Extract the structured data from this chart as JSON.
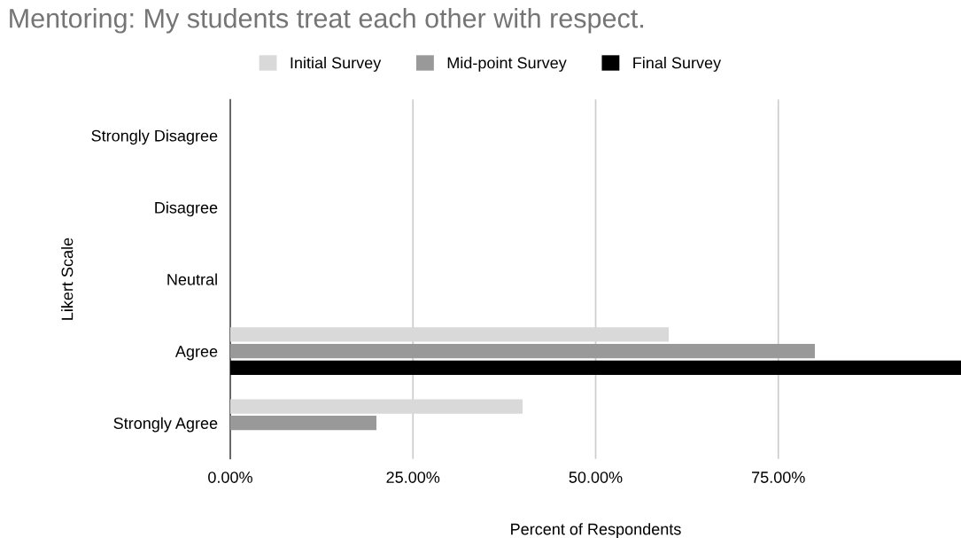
{
  "chart_data": {
    "type": "bar",
    "orientation": "horizontal",
    "title": "Mentoring: My students treat each other with respect.",
    "xlabel": "Percent of Respondents",
    "ylabel": "Likert Scale",
    "categories": [
      "Strongly Disagree",
      "Disagree",
      "Neutral",
      "Agree",
      "Strongly Agree"
    ],
    "series": [
      {
        "name": "Initial Survey",
        "color": "#d9d9d9",
        "values": [
          0,
          0,
          0,
          60,
          40
        ]
      },
      {
        "name": "Mid-point Survey",
        "color": "#999999",
        "values": [
          0,
          0,
          0,
          80,
          20
        ]
      },
      {
        "name": "Final Survey",
        "color": "#000000",
        "values": [
          0,
          0,
          0,
          100,
          0
        ]
      }
    ],
    "xlim": [
      0,
      100
    ],
    "xticks": [
      {
        "value": 0,
        "label": "0.00%"
      },
      {
        "value": 25,
        "label": "25.00%"
      },
      {
        "value": 50,
        "label": "50.00%"
      },
      {
        "value": 75,
        "label": "75.00%"
      }
    ],
    "grid": "x",
    "legend": "top"
  }
}
